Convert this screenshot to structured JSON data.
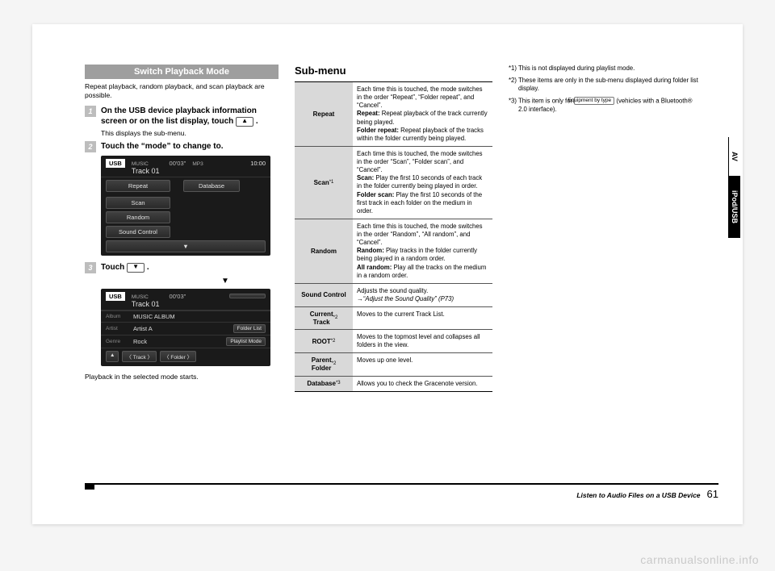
{
  "left": {
    "section_title": "Switch Playback Mode",
    "intro": "Repeat playback, random playback, and scan playback are possible.",
    "step1": "On the USB device playback information screen or on the list display, touch ",
    "step1_note": "This displays the sub-menu.",
    "step2": "Touch the “mode” to change to.",
    "step3_a": "Touch ",
    "step3_b": ".",
    "playback_note": "Playback in the selected mode starts.",
    "screen1": {
      "usb": "USB",
      "music_label": "MUSIC",
      "track": "Track 01",
      "elapsed": "00'03\"",
      "fmt": "MP3",
      "clock": "10:00",
      "buttons": [
        "Repeat",
        "Scan",
        "Random",
        "Sound  Control"
      ],
      "database": "Database"
    },
    "screen2": {
      "album_lbl": "Album",
      "album": "MUSIC ALBUM",
      "artist_lbl": "Artist",
      "artist": "Artist A",
      "genre_lbl": "Genre",
      "genre": "Rock",
      "folder_list": "Folder List",
      "playlist_mode": "Playlist Mode",
      "bottom": [
        "▲",
        "〈  Track  〉",
        "〈  Folder  〉"
      ]
    }
  },
  "mid": {
    "title": "Sub-menu",
    "rows": [
      {
        "h": "Repeat",
        "d": "Each time this is touched, the mode switches in the order “Repeat”, “Folder repeat”, and “Cancel”.<br><b>Repeat:</b>  Repeat playback of the track currently being played.<br><b>Folder repeat:</b>  Repeat playback of the tracks within the folder currently being played."
      },
      {
        "h": "Scan<sup>*1</sup>",
        "d": "Each time this is touched, the mode switches in the order “Scan”, “Folder scan”, and “Cancel”.<br><b>Scan:</b>  Play the first 10 seconds of each track in the folder currently being played in order.<br><b>Folder scan:</b>  Play the first 10 seconds of the first track in each folder on the medium in order."
      },
      {
        "h": "Random",
        "d": "Each time this is touched, the mode switches in the order “Random”, “All random”, and “Cancel”.<br><b>Random:</b>  Play tracks in the folder currently being played in a random order.<br><b>All random:</b>  Play all the tracks on the medium in a random order."
      },
      {
        "h": "Sound Control",
        "d": "Adjusts the sound quality.<br>→<i>“Adjust the Sound Quality” (P73)</i>"
      },
      {
        "h": "Current<br>Track<sup>*2</sup>",
        "d": "Moves to the current Track List."
      },
      {
        "h": "ROOT<sup>*2</sup>",
        "d": "Moves to the topmost level and collapses all folders in the view."
      },
      {
        "h": "Parent<br>Folder<sup>*2</sup>",
        "d": "Moves up one level."
      },
      {
        "h": "Database<sup>*3</sup>",
        "d": "Allows you to check the Gracenote version."
      }
    ]
  },
  "right": {
    "n1": "*1) This is not displayed during playlist mode.",
    "n2": "*2) These items are only in the sub-menu displayed during folder list display.",
    "n3_a": "*3) This item is only for ",
    "n3_chip": "Equipment by type",
    "n3_b": " (vehicles with a Bluetooth® 2.0 interface)."
  },
  "tabs": {
    "av": "AV",
    "ipod": "iPod/USB"
  },
  "footer": {
    "title": "Listen to Audio Files on a USB Device",
    "page": "61"
  },
  "watermark": "carmanualsonline.info"
}
